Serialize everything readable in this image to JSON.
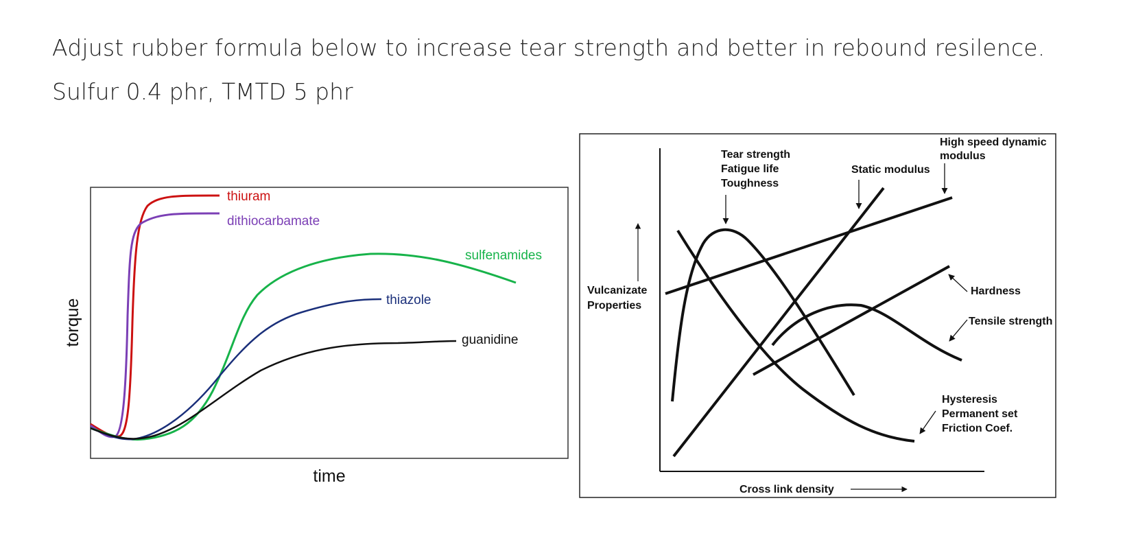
{
  "question": {
    "line1": "Adjust rubber formula below to increase tear strength and better in rebound resilence.",
    "line2": "Sulfur 0.4 phr, TMTD 5 phr"
  },
  "chart_data": [
    {
      "type": "line",
      "xlabel": "time",
      "ylabel": "torque",
      "series": [
        {
          "name": "thiuram",
          "color": "#cc1111"
        },
        {
          "name": "dithiocarbamate",
          "color": "#7b3fb5"
        },
        {
          "name": "sulfenamides",
          "color": "#17b34a"
        },
        {
          "name": "thiazole",
          "color": "#1a2f7a"
        },
        {
          "name": "guanidine",
          "color": "#111111"
        }
      ]
    },
    {
      "type": "line",
      "xlabel": "Cross link density",
      "ylabel": [
        "Vulcanizate",
        "Properties"
      ],
      "annotations": {
        "tear": [
          "Tear strength",
          "Fatigue life",
          "Toughness"
        ],
        "static": "Static modulus",
        "dynamic": [
          "High speed dynamic",
          "modulus"
        ],
        "hardness": "Hardness",
        "tensile": "Tensile strength",
        "hysteresis": [
          "Hysteresis",
          "Permanent set",
          "Friction Coef."
        ]
      }
    }
  ]
}
